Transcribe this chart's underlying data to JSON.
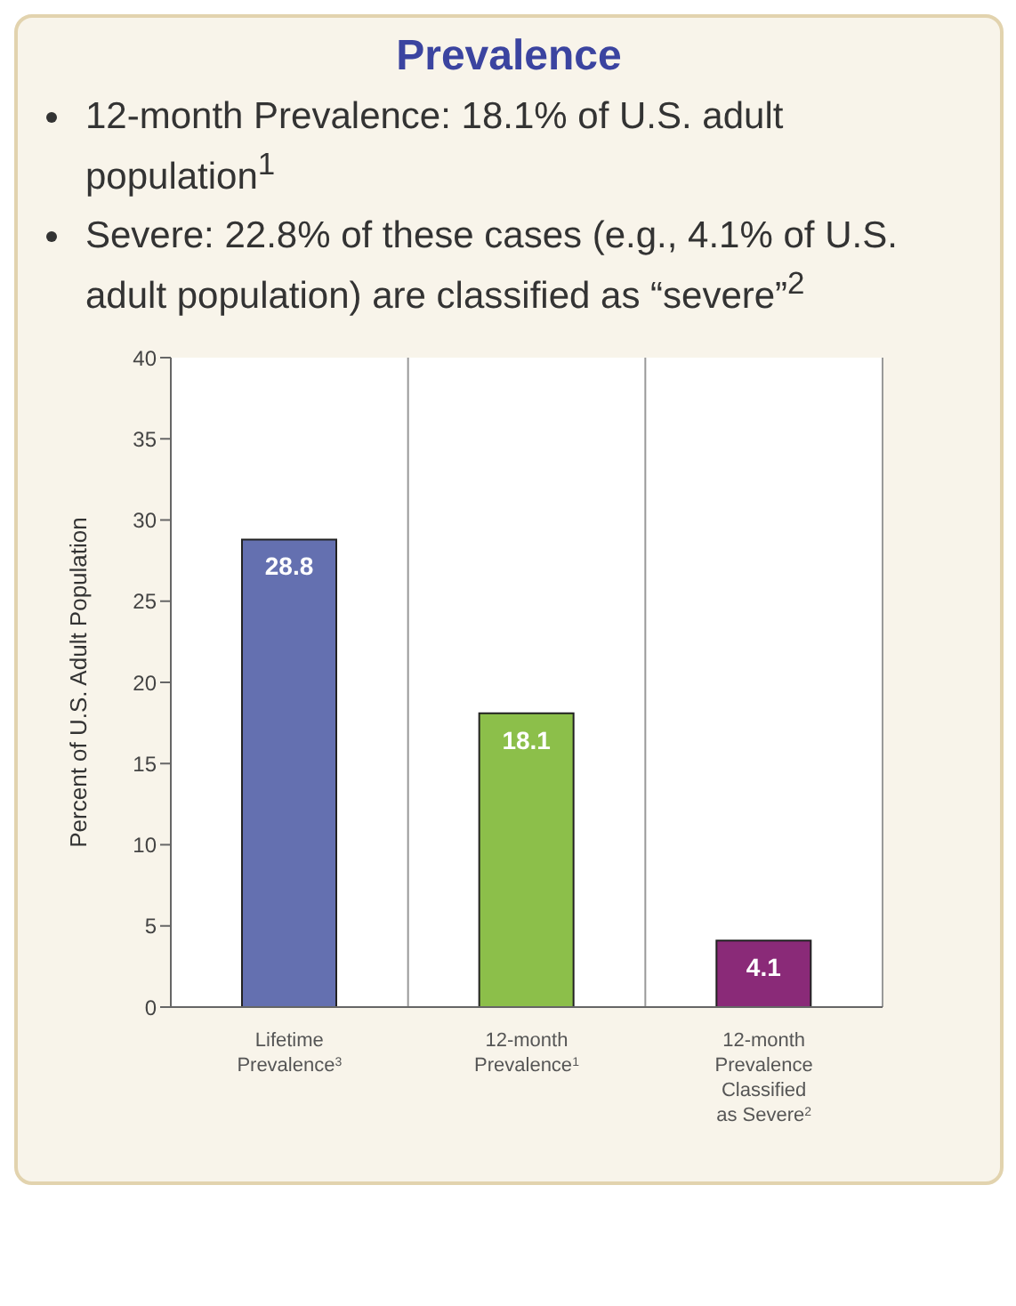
{
  "chart_data": {
    "type": "bar",
    "title": "Prevalence",
    "annotations": [
      "12-month Prevalence: 18.1% of U.S. adult population$^{1}$",
      "Severe: 22.8% of these cases (e.g., 4.1% of U.S. adult population) are classified as “severe”$^{2}$"
    ],
    "ylabel": "Percent of U.S. Adult Population",
    "categories": [
      "Lifetime Prevalence$^{3}$",
      "12-month Prevalence$^{1}$",
      "12-month Prevalence Classified as Severe$^{2}$"
    ],
    "values": [
      28.8,
      18.1,
      4.1
    ],
    "colors": [
      "#6470b0",
      "#8cbf4a",
      "#8a2a78"
    ],
    "ylim": [
      0,
      40
    ],
    "yticks": [
      0,
      5,
      10,
      15,
      20,
      25,
      30,
      35,
      40
    ],
    "data_labels": true,
    "grid": "x"
  }
}
